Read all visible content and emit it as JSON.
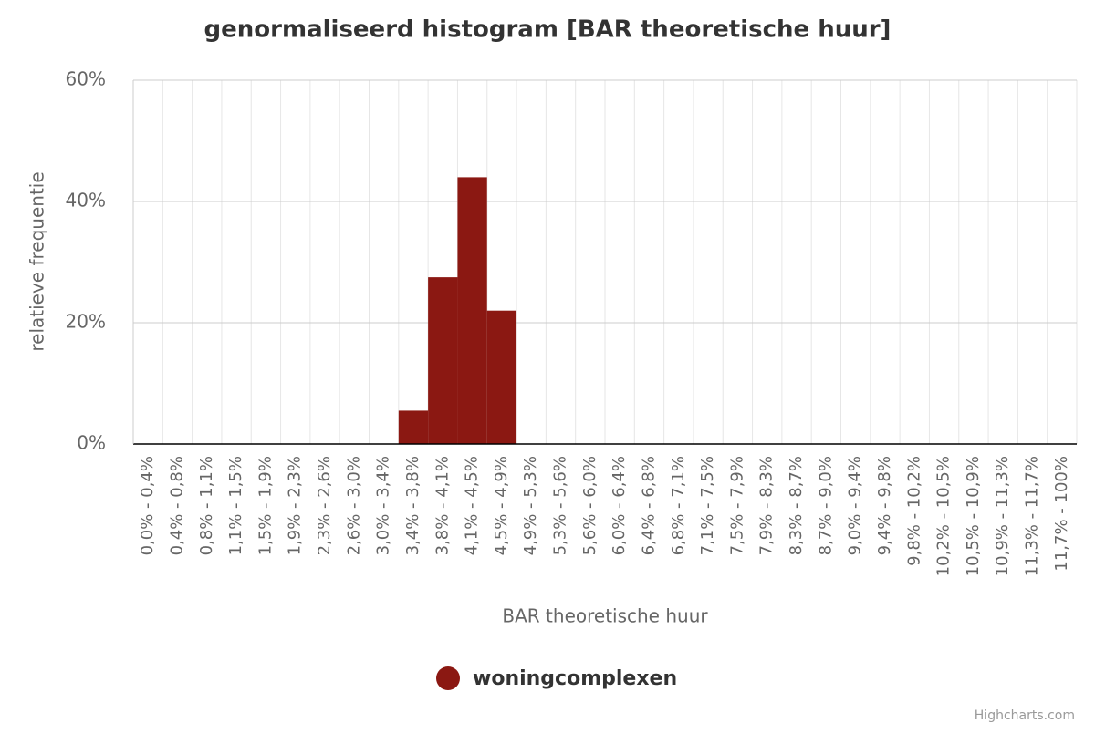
{
  "chart_data": {
    "type": "bar",
    "title": "genormaliseerd histogram [BAR theoretische huur]",
    "x_label": "BAR theoretische huur",
    "y_label": "relatieve frequentie",
    "categories": [
      "0,0% - 0,4%",
      "0,4% - 0,8%",
      "0,8% - 1,1%",
      "1,1% - 1,5%",
      "1,5% - 1,9%",
      "1,9% - 2,3%",
      "2,3% - 2,6%",
      "2,6% - 3,0%",
      "3,0% - 3,4%",
      "3,4% - 3,8%",
      "3,8% - 4,1%",
      "4,1% - 4,5%",
      "4,5% - 4,9%",
      "4,9% - 5,3%",
      "5,3% - 5,6%",
      "5,6% - 6,0%",
      "6,0% - 6,4%",
      "6,4% - 6,8%",
      "6,8% - 7,1%",
      "7,1% - 7,5%",
      "7,5% - 7,9%",
      "7,9% - 8,3%",
      "8,3% - 8,7%",
      "8,7% - 9,0%",
      "9,0% - 9,4%",
      "9,4% - 9,8%",
      "9,8% - 10,2%",
      "10,2% - 10,5%",
      "10,5% - 10,9%",
      "10,9% - 11,3%",
      "11,3% - 11,7%",
      "11,7% - 100%"
    ],
    "series": [
      {
        "name": "woningcomplexen",
        "color": "#8b1812",
        "values": [
          0,
          0,
          0,
          0,
          0,
          0,
          0,
          0,
          0,
          5.5,
          27.5,
          44,
          22,
          0,
          0,
          0,
          0,
          0,
          0,
          0,
          0,
          0,
          0,
          0,
          0,
          0,
          0,
          0,
          0,
          0,
          0,
          0
        ]
      }
    ],
    "ylim": [
      0,
      60
    ],
    "yticks": [
      {
        "value": 0,
        "label": "0%"
      },
      {
        "value": 20,
        "label": "20%"
      },
      {
        "value": 40,
        "label": "40%"
      },
      {
        "value": 60,
        "label": "60%"
      }
    ],
    "grid": true,
    "legend": "bottom",
    "credits": "Highcharts.com"
  }
}
